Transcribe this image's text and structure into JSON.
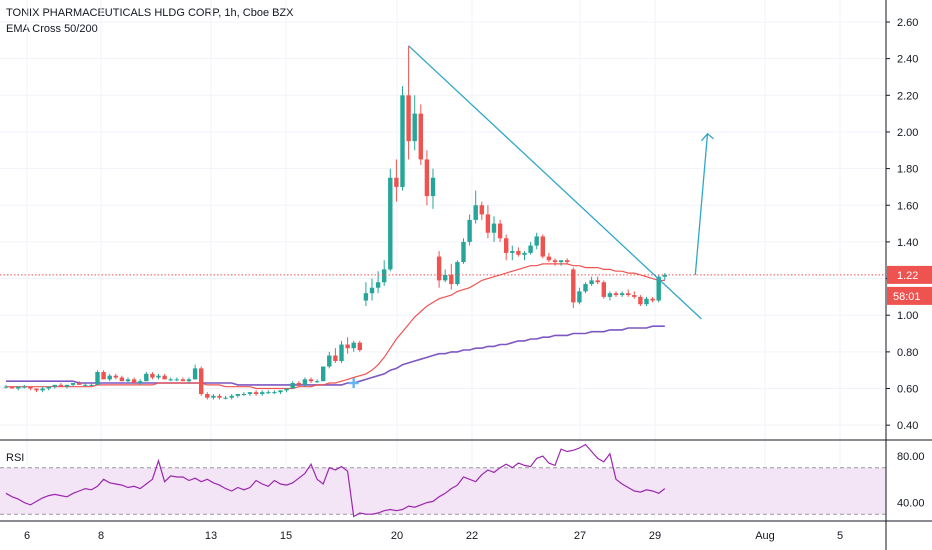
{
  "header": {
    "symbol_title": "TONIX PHARMACEUTICALS HLDG CORP, 1h, Cboe BZX",
    "indicator": "EMA Cross 50/200"
  },
  "price_panel": {
    "current_price_label": "1.22",
    "countdown_label": "58:01",
    "yticks": [
      "2.60",
      "2.40",
      "2.20",
      "2.00",
      "1.80",
      "1.60",
      "1.40",
      "1.20",
      "1.00",
      "0.80",
      "0.60",
      "0.40"
    ]
  },
  "rsi_panel": {
    "label": "RSI",
    "yticks": [
      "80.00",
      "40.00"
    ],
    "band": [
      30,
      70
    ]
  },
  "x_axis": {
    "ticks": [
      "6",
      "8",
      "13",
      "15",
      "20",
      "22",
      "27",
      "29",
      "Aug",
      "5"
    ]
  },
  "colors": {
    "up": "#26a69a",
    "down": "#ef5350",
    "ema50": "#ef5350",
    "ema200": "#7e57c2",
    "trendline": "#2ea7c7",
    "price_line": "#ef5350",
    "rsi_line": "#9c27b0",
    "rsi_band": "#f3e5f5"
  },
  "chart_data": [
    {
      "type": "candlestick",
      "ylim": [
        0.33,
        2.72
      ],
      "candles": [
        [
          0.61,
          0.62,
          0.6,
          0.61
        ],
        [
          0.61,
          0.61,
          0.6,
          0.6
        ],
        [
          0.6,
          0.61,
          0.59,
          0.61
        ],
        [
          0.61,
          0.62,
          0.6,
          0.61
        ],
        [
          0.61,
          0.61,
          0.59,
          0.6
        ],
        [
          0.6,
          0.6,
          0.58,
          0.59
        ],
        [
          0.59,
          0.61,
          0.58,
          0.6
        ],
        [
          0.6,
          0.61,
          0.59,
          0.61
        ],
        [
          0.61,
          0.62,
          0.6,
          0.62
        ],
        [
          0.62,
          0.63,
          0.61,
          0.61
        ],
        [
          0.61,
          0.62,
          0.6,
          0.62
        ],
        [
          0.62,
          0.63,
          0.61,
          0.63
        ],
        [
          0.63,
          0.64,
          0.62,
          0.62
        ],
        [
          0.62,
          0.63,
          0.61,
          0.62
        ],
        [
          0.62,
          0.63,
          0.61,
          0.62
        ],
        [
          0.62,
          0.7,
          0.62,
          0.69
        ],
        [
          0.69,
          0.7,
          0.65,
          0.65
        ],
        [
          0.65,
          0.68,
          0.64,
          0.67
        ],
        [
          0.67,
          0.68,
          0.65,
          0.66
        ],
        [
          0.66,
          0.67,
          0.64,
          0.64
        ],
        [
          0.64,
          0.66,
          0.63,
          0.65
        ],
        [
          0.65,
          0.66,
          0.63,
          0.63
        ],
        [
          0.63,
          0.65,
          0.62,
          0.64
        ],
        [
          0.64,
          0.69,
          0.64,
          0.68
        ],
        [
          0.68,
          0.69,
          0.65,
          0.66
        ],
        [
          0.66,
          0.68,
          0.65,
          0.67
        ],
        [
          0.67,
          0.68,
          0.65,
          0.65
        ],
        [
          0.65,
          0.66,
          0.64,
          0.65
        ],
        [
          0.65,
          0.66,
          0.64,
          0.65
        ],
        [
          0.65,
          0.66,
          0.64,
          0.64
        ],
        [
          0.64,
          0.66,
          0.63,
          0.65
        ],
        [
          0.65,
          0.73,
          0.65,
          0.71
        ],
        [
          0.71,
          0.72,
          0.56,
          0.57
        ],
        [
          0.57,
          0.58,
          0.54,
          0.55
        ],
        [
          0.55,
          0.57,
          0.54,
          0.56
        ],
        [
          0.56,
          0.57,
          0.54,
          0.55
        ],
        [
          0.55,
          0.56,
          0.54,
          0.55
        ],
        [
          0.55,
          0.57,
          0.54,
          0.56
        ],
        [
          0.56,
          0.57,
          0.55,
          0.57
        ],
        [
          0.57,
          0.58,
          0.56,
          0.57
        ],
        [
          0.57,
          0.58,
          0.56,
          0.58
        ],
        [
          0.58,
          0.59,
          0.56,
          0.57
        ],
        [
          0.57,
          0.59,
          0.56,
          0.58
        ],
        [
          0.58,
          0.59,
          0.57,
          0.58
        ],
        [
          0.58,
          0.59,
          0.57,
          0.58
        ],
        [
          0.58,
          0.59,
          0.57,
          0.59
        ],
        [
          0.59,
          0.6,
          0.58,
          0.6
        ],
        [
          0.6,
          0.64,
          0.6,
          0.63
        ],
        [
          0.63,
          0.64,
          0.61,
          0.62
        ],
        [
          0.62,
          0.66,
          0.61,
          0.65
        ],
        [
          0.65,
          0.66,
          0.63,
          0.64
        ],
        [
          0.64,
          0.65,
          0.63,
          0.64
        ],
        [
          0.64,
          0.72,
          0.64,
          0.72
        ],
        [
          0.72,
          0.8,
          0.71,
          0.78
        ],
        [
          0.78,
          0.82,
          0.74,
          0.75
        ],
        [
          0.75,
          0.86,
          0.74,
          0.84
        ],
        [
          0.84,
          0.88,
          0.79,
          0.82
        ],
        [
          0.82,
          0.86,
          0.8,
          0.85
        ],
        [
          0.85,
          0.86,
          0.8,
          0.81
        ],
        [
          1.08,
          1.18,
          1.05,
          1.12
        ],
        [
          1.12,
          1.2,
          1.08,
          1.15
        ],
        [
          1.15,
          1.24,
          1.12,
          1.18
        ],
        [
          1.18,
          1.3,
          1.16,
          1.25
        ],
        [
          1.25,
          1.8,
          1.24,
          1.75
        ],
        [
          1.75,
          1.85,
          1.62,
          1.7
        ],
        [
          1.7,
          2.25,
          1.68,
          2.2
        ],
        [
          2.2,
          2.47,
          1.85,
          1.95
        ],
        [
          1.95,
          2.2,
          1.9,
          2.1
        ],
        [
          2.1,
          2.15,
          1.82,
          1.85
        ],
        [
          1.85,
          1.9,
          1.6,
          1.65
        ],
        [
          1.65,
          1.8,
          1.58,
          1.75
        ],
        [
          1.32,
          1.35,
          1.15,
          1.19
        ],
        [
          1.19,
          1.25,
          1.18,
          1.22
        ],
        [
          1.22,
          1.28,
          1.14,
          1.17
        ],
        [
          1.17,
          1.3,
          1.16,
          1.29
        ],
        [
          1.29,
          1.42,
          1.28,
          1.4
        ],
        [
          1.4,
          1.55,
          1.38,
          1.52
        ],
        [
          1.52,
          1.68,
          1.5,
          1.6
        ],
        [
          1.6,
          1.62,
          1.52,
          1.55
        ],
        [
          1.55,
          1.6,
          1.42,
          1.45
        ],
        [
          1.45,
          1.54,
          1.4,
          1.5
        ],
        [
          1.5,
          1.52,
          1.4,
          1.42
        ],
        [
          1.42,
          1.44,
          1.3,
          1.34
        ],
        [
          1.34,
          1.38,
          1.3,
          1.35
        ],
        [
          1.35,
          1.37,
          1.32,
          1.33
        ],
        [
          1.33,
          1.35,
          1.3,
          1.34
        ],
        [
          1.34,
          1.4,
          1.33,
          1.38
        ],
        [
          1.38,
          1.45,
          1.36,
          1.43
        ],
        [
          1.43,
          1.44,
          1.31,
          1.32
        ],
        [
          1.32,
          1.34,
          1.29,
          1.3
        ],
        [
          1.3,
          1.31,
          1.27,
          1.29
        ],
        [
          1.29,
          1.3,
          1.27,
          1.3
        ],
        [
          1.3,
          1.31,
          1.28,
          1.29
        ],
        [
          1.25,
          1.26,
          1.04,
          1.07
        ],
        [
          1.07,
          1.15,
          1.06,
          1.13
        ],
        [
          1.13,
          1.18,
          1.12,
          1.17
        ],
        [
          1.17,
          1.21,
          1.16,
          1.19
        ],
        [
          1.19,
          1.21,
          1.17,
          1.18
        ],
        [
          1.18,
          1.19,
          1.09,
          1.1
        ],
        [
          1.1,
          1.13,
          1.08,
          1.12
        ],
        [
          1.12,
          1.13,
          1.1,
          1.11
        ],
        [
          1.11,
          1.13,
          1.1,
          1.12
        ],
        [
          1.12,
          1.14,
          1.1,
          1.11
        ],
        [
          1.11,
          1.13,
          1.09,
          1.1
        ],
        [
          1.1,
          1.11,
          1.05,
          1.06
        ],
        [
          1.06,
          1.1,
          1.05,
          1.09
        ],
        [
          1.09,
          1.1,
          1.07,
          1.08
        ],
        [
          1.08,
          1.22,
          1.07,
          1.21
        ],
        [
          1.21,
          1.23,
          1.19,
          1.22
        ]
      ],
      "ema50": [
        0.61,
        0.61,
        0.61,
        0.61,
        0.61,
        0.61,
        0.61,
        0.61,
        0.61,
        0.61,
        0.61,
        0.61,
        0.61,
        0.61,
        0.61,
        0.62,
        0.62,
        0.62,
        0.62,
        0.62,
        0.62,
        0.62,
        0.62,
        0.62,
        0.62,
        0.63,
        0.63,
        0.63,
        0.63,
        0.63,
        0.63,
        0.63,
        0.63,
        0.62,
        0.62,
        0.62,
        0.61,
        0.61,
        0.61,
        0.61,
        0.61,
        0.6,
        0.6,
        0.6,
        0.6,
        0.6,
        0.6,
        0.6,
        0.61,
        0.61,
        0.61,
        0.62,
        0.62,
        0.63,
        0.63,
        0.64,
        0.65,
        0.66,
        0.67,
        0.68,
        0.7,
        0.73,
        0.77,
        0.82,
        0.87,
        0.91,
        0.95,
        0.99,
        1.02,
        1.05,
        1.07,
        1.09,
        1.1,
        1.11,
        1.13,
        1.14,
        1.15,
        1.17,
        1.19,
        1.2,
        1.21,
        1.22,
        1.23,
        1.24,
        1.25,
        1.26,
        1.27,
        1.27,
        1.28,
        1.28,
        1.28,
        1.28,
        1.28,
        1.27,
        1.27,
        1.26,
        1.26,
        1.26,
        1.25,
        1.25,
        1.24,
        1.24,
        1.23,
        1.23,
        1.22,
        1.21,
        1.2,
        1.19,
        1.19
      ],
      "ema200": [
        0.64,
        0.64,
        0.64,
        0.64,
        0.64,
        0.64,
        0.64,
        0.64,
        0.64,
        0.64,
        0.64,
        0.64,
        0.63,
        0.63,
        0.63,
        0.63,
        0.63,
        0.63,
        0.63,
        0.63,
        0.63,
        0.63,
        0.63,
        0.63,
        0.63,
        0.63,
        0.63,
        0.63,
        0.63,
        0.63,
        0.63,
        0.63,
        0.63,
        0.63,
        0.63,
        0.63,
        0.63,
        0.63,
        0.62,
        0.62,
        0.62,
        0.62,
        0.62,
        0.62,
        0.62,
        0.62,
        0.62,
        0.62,
        0.62,
        0.62,
        0.62,
        0.62,
        0.62,
        0.62,
        0.62,
        0.62,
        0.63,
        0.63,
        0.64,
        0.65,
        0.66,
        0.67,
        0.68,
        0.7,
        0.71,
        0.73,
        0.74,
        0.75,
        0.76,
        0.77,
        0.78,
        0.79,
        0.79,
        0.8,
        0.8,
        0.81,
        0.81,
        0.82,
        0.82,
        0.83,
        0.83,
        0.84,
        0.84,
        0.85,
        0.86,
        0.86,
        0.87,
        0.87,
        0.88,
        0.88,
        0.89,
        0.89,
        0.89,
        0.9,
        0.9,
        0.9,
        0.91,
        0.91,
        0.91,
        0.92,
        0.92,
        0.92,
        0.93,
        0.93,
        0.93,
        0.93,
        0.94,
        0.94,
        0.94
      ],
      "price_line": 1.22,
      "trendline": [
        [
          66,
          2.47
        ],
        [
          114,
          0.98
        ]
      ],
      "arrow": [
        [
          113,
          1.22
        ],
        [
          115,
          1.99
        ]
      ],
      "cross_marker": [
        57,
        0.63
      ]
    },
    {
      "type": "line",
      "ylim": [
        25,
        93
      ],
      "band": [
        30,
        70
      ],
      "values": [
        48,
        45,
        43,
        40,
        38,
        41,
        44,
        46,
        47,
        46,
        45,
        48,
        50,
        52,
        51,
        54,
        60,
        57,
        56,
        55,
        53,
        54,
        52,
        56,
        60,
        76,
        58,
        63,
        62,
        62,
        59,
        61,
        58,
        60,
        57,
        55,
        52,
        50,
        53,
        51,
        53,
        59,
        56,
        54,
        59,
        56,
        55,
        57,
        61,
        65,
        73,
        60,
        56,
        70,
        68,
        71,
        67,
        28,
        31,
        30,
        30,
        31,
        33,
        34,
        33,
        34,
        37,
        36,
        38,
        40,
        41,
        45,
        48,
        52,
        55,
        62,
        60,
        58,
        64,
        68,
        66,
        70,
        73,
        70,
        74,
        72,
        71,
        78,
        80,
        74,
        72,
        86,
        84,
        85,
        87,
        90,
        84,
        78,
        75,
        82,
        60,
        56,
        53,
        50,
        49,
        51,
        50,
        48,
        52
      ]
    }
  ]
}
